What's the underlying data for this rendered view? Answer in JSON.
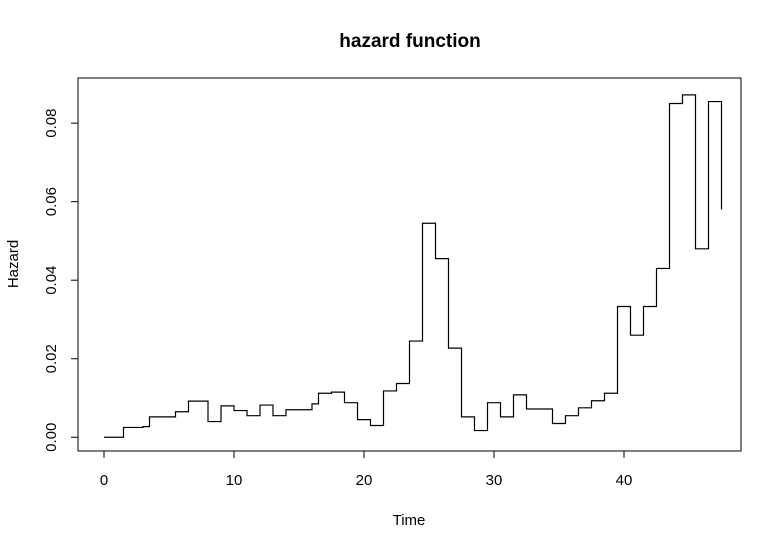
{
  "chart_data": {
    "type": "line",
    "style": "step",
    "title": "hazard function",
    "xlabel": "Time",
    "ylabel": "Hazard",
    "xlim": [
      -2,
      49
    ],
    "ylim": [
      -0.0035,
      0.0915
    ],
    "xticks": [
      0,
      10,
      20,
      30,
      40
    ],
    "yticks": [
      0.0,
      0.02,
      0.04,
      0.06,
      0.08
    ],
    "ytick_labels": [
      "0.00",
      "0.02",
      "0.04",
      "0.06",
      "0.08"
    ],
    "series": [
      {
        "x": [
          0,
          1.5,
          3,
          3.5,
          5.5,
          6.5,
          8,
          9,
          10,
          11,
          12,
          13,
          14,
          16,
          16.5,
          17.5,
          18.5,
          19.5,
          20.5,
          21.5,
          22.5,
          23.5,
          24.5,
          25.5,
          26.5,
          27.5,
          28.5,
          29.5,
          30.5,
          31.5,
          32.5,
          34.5,
          35.5,
          36.5,
          37.5,
          38.5,
          39.5,
          40.5,
          41.5,
          42.5,
          43.5,
          44.5,
          45.5,
          46.5,
          47.5
        ],
        "y": [
          0.0,
          0.0025,
          0.0027,
          0.0052,
          0.0065,
          0.0092,
          0.004,
          0.008,
          0.0068,
          0.0055,
          0.0082,
          0.0055,
          0.007,
          0.0085,
          0.0112,
          0.0115,
          0.0088,
          0.0045,
          0.003,
          0.0118,
          0.0137,
          0.0245,
          0.0545,
          0.0455,
          0.0227,
          0.0052,
          0.0017,
          0.0088,
          0.0052,
          0.0108,
          0.0072,
          0.0035,
          0.0055,
          0.0075,
          0.0093,
          0.0112,
          0.0333,
          0.026,
          0.0333,
          0.043,
          0.085,
          0.0872,
          0.048,
          0.0855,
          0.058
        ]
      }
    ]
  }
}
